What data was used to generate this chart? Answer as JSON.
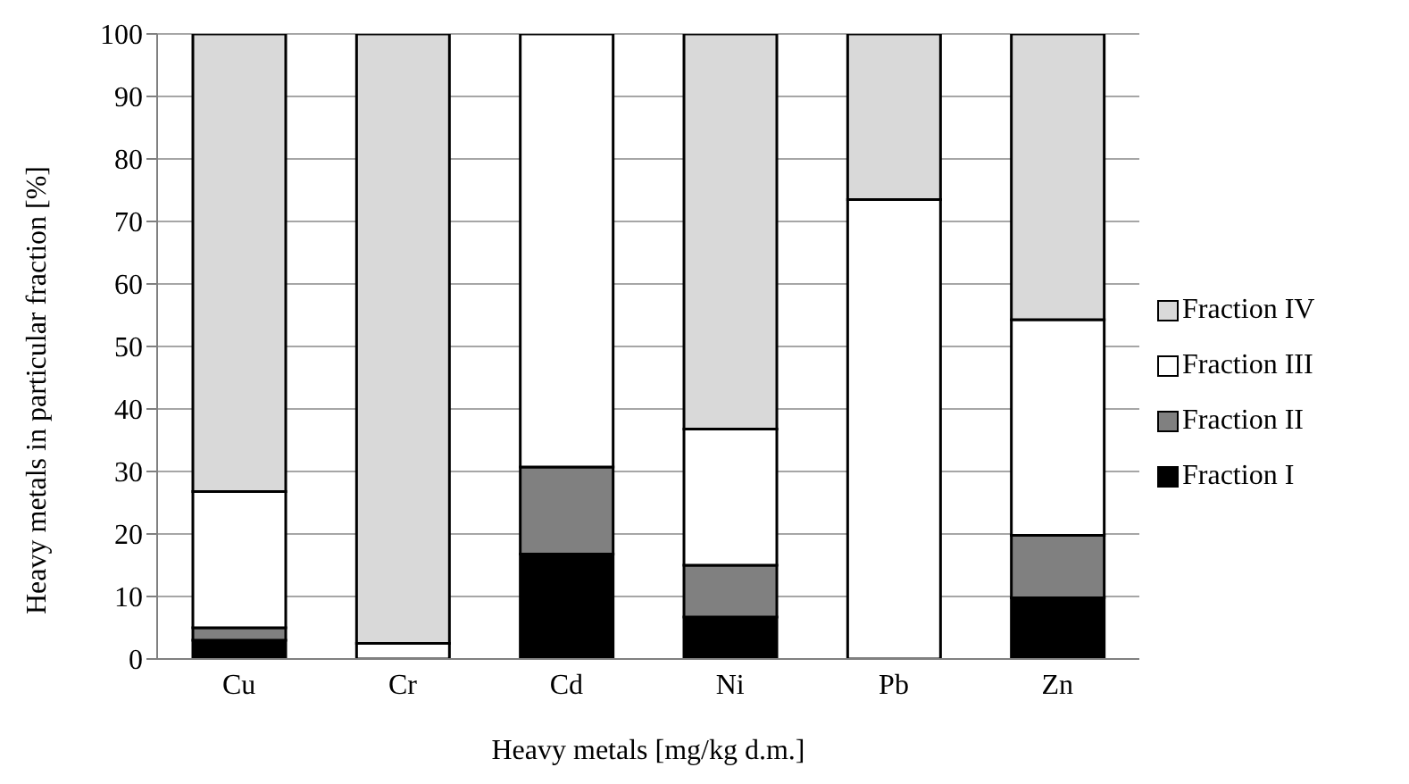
{
  "chart_data": {
    "type": "bar",
    "stacked": true,
    "xlabel": "Heavy metals [mg/kg d.m.]",
    "ylabel": "Heavy metals in particular fraction [%]",
    "categories": [
      "Cu",
      "Cr",
      "Cd",
      "Ni",
      "Pb",
      "Zn"
    ],
    "series": [
      {
        "name": "Fraction I",
        "color": "#000000",
        "values": [
          3,
          null,
          16.8,
          6.7,
          0,
          9.8
        ]
      },
      {
        "name": "Fraction II",
        "color": "#808080",
        "values": [
          2,
          null,
          13.9,
          8.3,
          0,
          10
        ]
      },
      {
        "name": "Fraction III",
        "color": "#ffffff",
        "values": [
          21.8,
          2.5,
          69.3,
          21.8,
          73.5,
          34.5
        ]
      },
      {
        "name": "Fraction IV",
        "color": "#d9d9d9",
        "values": [
          73.2,
          97.5,
          0,
          63.2,
          26.5,
          45.7
        ]
      }
    ],
    "ylim": [
      0,
      100
    ],
    "yticks": [
      0,
      10,
      20,
      30,
      40,
      50,
      60,
      70,
      80,
      90,
      100
    ],
    "grid": "y",
    "legend": "right"
  }
}
